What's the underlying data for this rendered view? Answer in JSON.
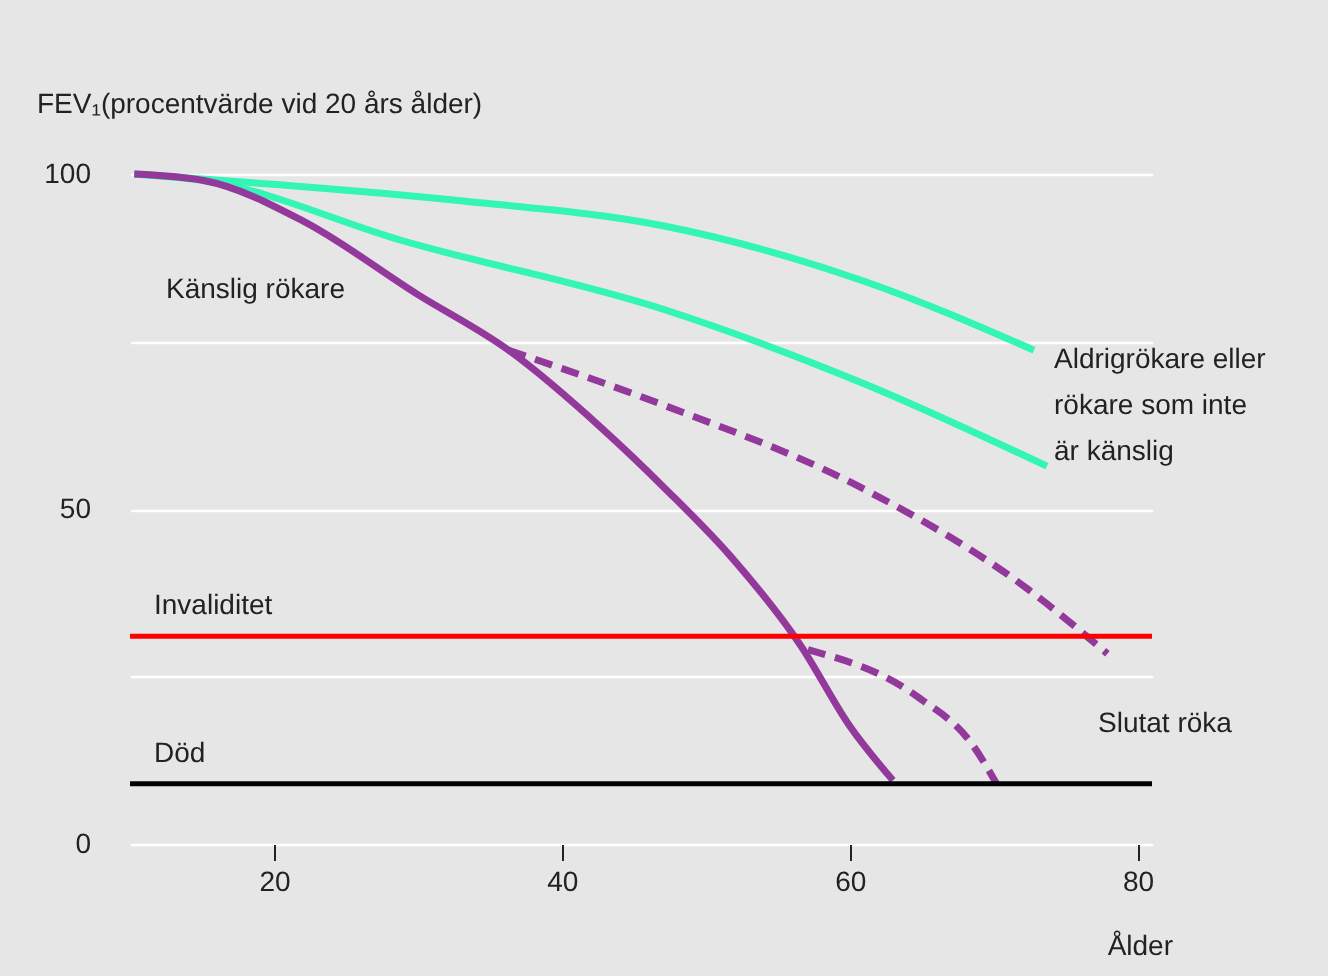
{
  "chart_data": {
    "type": "line",
    "xlabel": "Ålder",
    "ylabel": "FEV₁(procentvärde vid 20 års ålder)",
    "xlim": [
      10,
      81
    ],
    "xticks": [
      20,
      40,
      60,
      80
    ],
    "ylim": [
      0,
      100
    ],
    "yticks": [
      0,
      {
        "value": 25,
        "label": null
      },
      50,
      {
        "value": 75,
        "label": null
      },
      100
    ],
    "grid": "y",
    "series": [
      {
        "color": "#33f5b5",
        "line_style": "solid",
        "x": [
          10.3,
          19.7,
          33,
          47.2,
          61,
          72.8
        ],
        "values": [
          100,
          98.5,
          96,
          92.2,
          84,
          73.7
        ]
      },
      {
        "color": "#33f5b5",
        "line_style": "solid",
        "x": [
          10.3,
          15.2,
          29,
          47.2,
          61,
          73.7
        ],
        "values": [
          100,
          99,
          90,
          79.7,
          68.7,
          56.4
        ]
      },
      {
        "color": "#93399b",
        "line_style": "solid",
        "x": [
          10.3,
          15.2,
          22,
          30,
          36.3,
          42.8,
          47.2,
          51.7,
          56.6,
          60,
          63
        ],
        "values": [
          100,
          99,
          93,
          82,
          73.7,
          62,
          53,
          43,
          29.6,
          17.6,
          9.5
        ]
      },
      {
        "color": "#93399b",
        "line_style": "dashed",
        "x": [
          36.3,
          47.2,
          60.6,
          72.4,
          77.9
        ],
        "values": [
          73.7,
          65.4,
          53.4,
          38,
          28.4
        ]
      },
      {
        "color": "#93399b",
        "line_style": "dashed",
        "x": [
          57.1,
          64.7,
          68.6,
          70.2
        ],
        "values": [
          29,
          22,
          14.6,
          9
        ]
      }
    ],
    "ref_lines": [
      {
        "axis": "y",
        "value": 31,
        "label": "Invaliditet",
        "color": "#ff0000"
      },
      {
        "axis": "y",
        "value": 9,
        "label": "Död",
        "color": "#000000"
      }
    ],
    "annotations": [
      "Känslig rökare",
      "Aldrigrökare eller\nrökare som inte\när känslig",
      "Slutat röka"
    ]
  }
}
